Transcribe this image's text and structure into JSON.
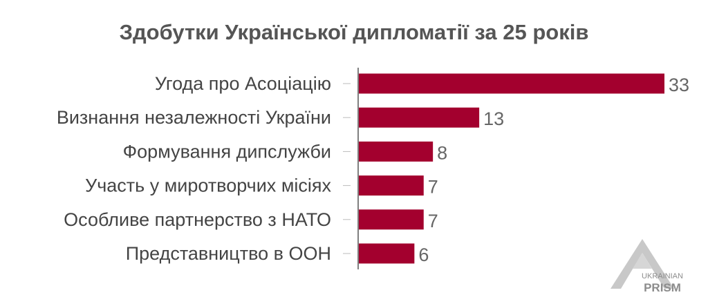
{
  "chart_data": {
    "type": "bar",
    "orientation": "horizontal",
    "title": "Здобутки Української дипломатії за 25 років",
    "categories": [
      "Угода про Асоціацію",
      "Визнання незалежності України",
      "Формування дипслужби",
      "Участь у миротворчих місіях",
      "Особливе партнерство з НАТО",
      "Представництво в ООН"
    ],
    "values": [
      33,
      13,
      8,
      7,
      7,
      6
    ],
    "xlim": [
      0,
      33
    ],
    "grid": false,
    "legend": "none",
    "bar_color": "#a3002e"
  },
  "logo": {
    "line1": "UKRAINIAN",
    "line2": "PRISM"
  }
}
